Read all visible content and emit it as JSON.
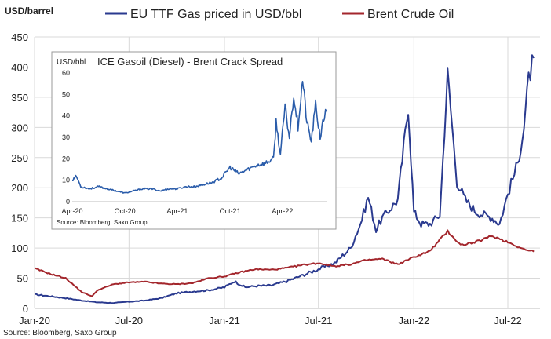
{
  "chart_data": [
    {
      "type": "line",
      "ylabel": "USD/barrel",
      "source": "Source: Bloomberg, Saxo Group",
      "ylim": [
        0,
        450
      ],
      "y_ticks": [
        "0",
        "50",
        "100",
        "150",
        "200",
        "250",
        "300",
        "350",
        "400",
        "450"
      ],
      "x_ticks": [
        "Jan-20",
        "Jul-20",
        "Jan-21",
        "Jul-21",
        "Jan-22",
        "Jul-22"
      ],
      "grid": true,
      "legend_position": "top",
      "series": [
        {
          "name": "EU TTF Gas priced in USD/bbl",
          "color": "#2a3a8f",
          "x": [
            "2020-01-02",
            "2020-02-01",
            "2020-03-01",
            "2020-04-01",
            "2020-05-01",
            "2020-06-01",
            "2020-07-01",
            "2020-08-01",
            "2020-09-01",
            "2020-10-01",
            "2020-11-01",
            "2020-12-01",
            "2021-01-01",
            "2021-01-20",
            "2021-02-10",
            "2021-03-01",
            "2021-04-01",
            "2021-05-01",
            "2021-06-01",
            "2021-07-01",
            "2021-08-01",
            "2021-09-01",
            "2021-09-20",
            "2021-10-05",
            "2021-10-20",
            "2021-11-01",
            "2021-12-01",
            "2021-12-21",
            "2022-01-01",
            "2022-01-15",
            "2022-02-01",
            "2022-02-20",
            "2022-03-07",
            "2022-03-25",
            "2022-04-10",
            "2022-05-01",
            "2022-06-01",
            "2022-06-15",
            "2022-07-01",
            "2022-07-20",
            "2022-08-01",
            "2022-08-10",
            "2022-08-20"
          ],
          "values": [
            23,
            20,
            17,
            13,
            10,
            9,
            11,
            13,
            17,
            25,
            28,
            30,
            35,
            45,
            35,
            37,
            38,
            45,
            55,
            65,
            75,
            100,
            140,
            185,
            130,
            150,
            180,
            335,
            160,
            140,
            140,
            155,
            388,
            210,
            180,
            160,
            150,
            140,
            190,
            240,
            300,
            380,
            415
          ]
        },
        {
          "name": "Brent Crude Oil",
          "color": "#a3262c",
          "x": [
            "2020-01-02",
            "2020-02-01",
            "2020-03-01",
            "2020-04-01",
            "2020-04-21",
            "2020-05-01",
            "2020-06-01",
            "2020-07-01",
            "2020-08-01",
            "2020-09-01",
            "2020-10-01",
            "2020-11-01",
            "2020-12-01",
            "2021-01-01",
            "2021-02-01",
            "2021-03-01",
            "2021-04-01",
            "2021-05-01",
            "2021-06-01",
            "2021-07-01",
            "2021-08-01",
            "2021-09-01",
            "2021-10-01",
            "2021-11-01",
            "2021-12-01",
            "2022-01-01",
            "2022-02-01",
            "2022-03-07",
            "2022-04-01",
            "2022-05-01",
            "2022-06-01",
            "2022-07-01",
            "2022-08-01",
            "2022-08-20"
          ],
          "values": [
            66,
            57,
            50,
            27,
            20,
            30,
            40,
            43,
            44,
            41,
            40,
            42,
            50,
            53,
            60,
            65,
            64,
            67,
            72,
            75,
            70,
            73,
            80,
            82,
            73,
            85,
            95,
            128,
            105,
            110,
            120,
            110,
            98,
            94
          ]
        }
      ]
    },
    {
      "type": "line",
      "title": "ICE Gasoil (Diesel) - Brent Crack Spread",
      "ylabel": "USD/bbl",
      "source": "Source: Bloomberg, Saxo Group",
      "ylim": [
        0,
        60
      ],
      "y_ticks": [
        "0",
        "10",
        "20",
        "30",
        "40",
        "50",
        "60"
      ],
      "x_ticks": [
        "Apr-20",
        "Oct-20",
        "Apr-21",
        "Oct-21",
        "Apr-22"
      ],
      "grid": false,
      "series": [
        {
          "color": "#2a5caa",
          "x": [
            "2020-04-01",
            "2020-04-15",
            "2020-05-01",
            "2020-06-01",
            "2020-07-01",
            "2020-08-01",
            "2020-09-01",
            "2020-10-01",
            "2020-11-01",
            "2020-12-01",
            "2021-01-01",
            "2021-02-01",
            "2021-03-01",
            "2021-04-01",
            "2021-05-01",
            "2021-06-01",
            "2021-07-01",
            "2021-08-01",
            "2021-09-01",
            "2021-10-01",
            "2021-11-01",
            "2021-12-01",
            "2022-01-01",
            "2022-02-01",
            "2022-03-01",
            "2022-03-10",
            "2022-03-25",
            "2022-04-10",
            "2022-04-25",
            "2022-05-10",
            "2022-05-25",
            "2022-06-10",
            "2022-06-25",
            "2022-07-10",
            "2022-07-25",
            "2022-08-10",
            "2022-08-25",
            "2022-09-01"
          ],
          "values": [
            10,
            12,
            7,
            6,
            7,
            6,
            5,
            4,
            5,
            6,
            6,
            5,
            6,
            6,
            7,
            7,
            8,
            9,
            11,
            16,
            13,
            15,
            17,
            18,
            20,
            37,
            22,
            44,
            30,
            50,
            35,
            57,
            37,
            28,
            45,
            30,
            40,
            42
          ]
        }
      ]
    }
  ],
  "legend": {
    "ttf_label": "EU TTF Gas priced in USD/bbl",
    "brent_label": "Brent Crude Oil"
  },
  "colors": {
    "ttf": "#2a3a8f",
    "brent": "#a3262c",
    "inset": "#2a5caa",
    "grid": "#d9d9d9"
  }
}
